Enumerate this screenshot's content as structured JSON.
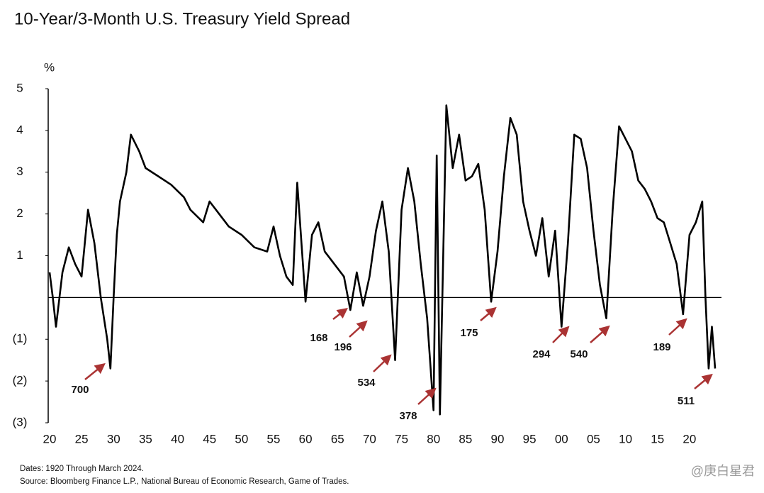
{
  "chart_data": {
    "type": "line",
    "title": "10-Year/3-Month U.S. Treasury Yield Spread",
    "y_label": "%",
    "x": [
      1920,
      1920.5,
      1921,
      1922,
      1923,
      1924,
      1925,
      1926,
      1927,
      1928,
      1929,
      1929.5,
      1930,
      1930.5,
      1931,
      1932,
      1932.7,
      1934,
      1935,
      1937,
      1939,
      1941,
      1942,
      1944,
      1945,
      1946,
      1948,
      1950,
      1952,
      1954,
      1955,
      1956,
      1957,
      1958,
      1958.7,
      1959,
      1960,
      1961,
      1962,
      1963,
      1965,
      1966,
      1967,
      1968,
      1969,
      1970,
      1971,
      1972,
      1973,
      1974,
      1975,
      1976,
      1977,
      1978,
      1979,
      1980,
      1980.5,
      1981,
      1982,
      1983,
      1984,
      1985,
      1986,
      1987,
      1988,
      1989,
      1990,
      1991,
      1992,
      1993,
      1994,
      1995,
      1996,
      1997,
      1998,
      1999,
      2000,
      2001,
      2002,
      2003,
      2004,
      2005,
      2006,
      2007,
      2008,
      2009,
      2010,
      2011,
      2012,
      2013,
      2014,
      2015,
      2016,
      2017,
      2018,
      2019,
      2020,
      2021,
      2022,
      2022.5,
      2023,
      2023.5,
      2024
    ],
    "values": [
      0.6,
      0,
      -0.7,
      0.6,
      1.2,
      0.8,
      0.5,
      2.1,
      1.3,
      0,
      -1.0,
      -1.7,
      0,
      1.5,
      2.3,
      3.0,
      3.9,
      3.5,
      3.1,
      2.9,
      2.7,
      2.4,
      2.1,
      1.8,
      2.3,
      2.1,
      1.7,
      1.5,
      1.2,
      1.1,
      1.7,
      1.0,
      0.5,
      0.3,
      2.75,
      2.1,
      -0.1,
      1.5,
      1.8,
      1.1,
      0.7,
      0.5,
      -0.3,
      0.6,
      -0.2,
      0.5,
      1.6,
      2.3,
      1.1,
      -1.5,
      2.1,
      3.1,
      2.3,
      0.8,
      -0.5,
      -2.7,
      3.4,
      -2.8,
      4.6,
      3.1,
      3.9,
      2.8,
      2.9,
      3.2,
      2.1,
      -0.1,
      1.1,
      2.9,
      4.3,
      3.9,
      2.3,
      1.6,
      1.0,
      1.9,
      0.5,
      1.6,
      -0.7,
      1.3,
      3.9,
      3.8,
      3.1,
      1.6,
      0.3,
      -0.5,
      2.1,
      4.1,
      3.8,
      3.5,
      2.8,
      2.6,
      2.3,
      1.9,
      1.8,
      1.3,
      0.8,
      -0.4,
      1.5,
      1.8,
      2.3,
      0,
      -1.7,
      -0.7,
      -1.7
    ],
    "color": "#000000",
    "xlim": [
      1920,
      2025
    ],
    "xticks": [
      {
        "value": 1920,
        "label": "20"
      },
      {
        "value": 1925,
        "label": "25"
      },
      {
        "value": 1930,
        "label": "30"
      },
      {
        "value": 1935,
        "label": "35"
      },
      {
        "value": 1940,
        "label": "40"
      },
      {
        "value": 1945,
        "label": "45"
      },
      {
        "value": 1950,
        "label": "50"
      },
      {
        "value": 1955,
        "label": "55"
      },
      {
        "value": 1960,
        "label": "60"
      },
      {
        "value": 1965,
        "label": "65"
      },
      {
        "value": 1970,
        "label": "70"
      },
      {
        "value": 1975,
        "label": "75"
      },
      {
        "value": 1980,
        "label": "80"
      },
      {
        "value": 1985,
        "label": "85"
      },
      {
        "value": 1990,
        "label": "90"
      },
      {
        "value": 1995,
        "label": "95"
      },
      {
        "value": 2000,
        "label": "00"
      },
      {
        "value": 2005,
        "label": "05"
      },
      {
        "value": 2010,
        "label": "10"
      },
      {
        "value": 2015,
        "label": "15"
      },
      {
        "value": 2020,
        "label": "20"
      }
    ],
    "ylim": [
      -3,
      5
    ],
    "yticks": [
      5,
      4,
      3,
      2,
      1,
      {
        "value": -1,
        "label": "(1)"
      },
      {
        "value": -2,
        "label": "(2)"
      },
      {
        "value": -3,
        "label": "(3)"
      }
    ],
    "zero_line": true,
    "annotations": [
      "700",
      "168",
      "196",
      "534",
      "378",
      "175",
      "294",
      "540",
      "189",
      "511"
    ],
    "notes": [
      "Dates: 1920 Through March 2024.",
      "Source: Bloomberg Finance L.P., National Bureau of Economic Research, Game of Trades."
    ],
    "watermark": "@庚白星君"
  }
}
